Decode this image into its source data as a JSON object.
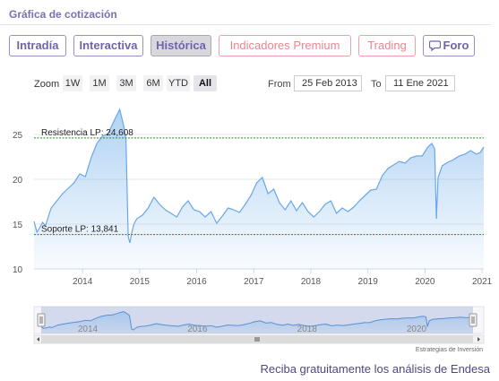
{
  "header": {
    "title": "Gráfica de cotización"
  },
  "tabs": [
    {
      "label": "Intradía"
    },
    {
      "label": "Interactiva"
    },
    {
      "label": "Histórica"
    },
    {
      "label": "Indicadores Premium"
    },
    {
      "label": "Trading"
    },
    {
      "label": "Foro"
    }
  ],
  "zoom": {
    "label": "Zoom",
    "buttons": [
      "1W",
      "1M",
      "3M",
      "6M",
      "YTD",
      "All"
    ],
    "selected": "All"
  },
  "range": {
    "from_label": "From",
    "from_value": "25 Feb 2013",
    "to_label": "To",
    "to_value": "11 Ene 2021"
  },
  "chart_data": {
    "type": "area",
    "y_ticks": [
      "10",
      "15",
      "20",
      "25"
    ],
    "ylim": [
      10,
      28.5
    ],
    "x_ticks": [
      "2014",
      "2015",
      "2016",
      "2017",
      "2018",
      "2019",
      "2020",
      "2021"
    ],
    "xlim": [
      2013.15,
      2021.03
    ],
    "series": [
      {
        "x": [
          2013.15,
          2013.2,
          2013.25,
          2013.3,
          2013.35,
          2013.45,
          2013.55,
          2013.65,
          2013.75,
          2013.85,
          2013.95,
          2014.05,
          2014.15,
          2014.25,
          2014.35,
          2014.45,
          2014.55,
          2014.65,
          2014.72,
          2014.76,
          2014.8,
          2014.83,
          2014.86,
          2014.9,
          2014.95,
          2015.05,
          2015.15,
          2015.25,
          2015.35,
          2015.45,
          2015.55,
          2015.65,
          2015.75,
          2015.85,
          2015.95,
          2016.05,
          2016.15,
          2016.25,
          2016.35,
          2016.45,
          2016.55,
          2016.65,
          2016.75,
          2016.85,
          2016.95,
          2017.05,
          2017.15,
          2017.25,
          2017.35,
          2017.45,
          2017.55,
          2017.65,
          2017.75,
          2017.85,
          2017.95,
          2018.05,
          2018.15,
          2018.25,
          2018.35,
          2018.45,
          2018.55,
          2018.65,
          2018.75,
          2018.85,
          2018.95,
          2019.05,
          2019.15,
          2019.25,
          2019.35,
          2019.45,
          2019.55,
          2019.65,
          2019.75,
          2019.85,
          2019.95,
          2020.05,
          2020.12,
          2020.17,
          2020.2,
          2020.23,
          2020.3,
          2020.4,
          2020.5,
          2020.6,
          2020.7,
          2020.8,
          2020.9,
          2020.97,
          2021.03
        ],
        "y": [
          15.3,
          14.1,
          14.6,
          15.2,
          14.8,
          16.8,
          17.6,
          18.4,
          19.0,
          19.6,
          20.6,
          20.3,
          22.4,
          24.0,
          24.8,
          25.1,
          26.5,
          27.8,
          26.0,
          24.5,
          13.6,
          12.9,
          14.0,
          15.0,
          15.6,
          16.0,
          16.8,
          18.0,
          17.2,
          16.6,
          16.2,
          15.8,
          16.9,
          17.6,
          16.6,
          16.4,
          15.8,
          16.4,
          15.1,
          15.9,
          16.8,
          16.6,
          16.3,
          17.2,
          18.2,
          19.6,
          20.2,
          18.4,
          18.9,
          17.4,
          16.6,
          17.6,
          16.5,
          17.4,
          16.4,
          15.8,
          16.4,
          17.2,
          17.6,
          16.2,
          16.8,
          16.4,
          16.9,
          17.6,
          18.2,
          18.8,
          18.9,
          20.4,
          21.2,
          21.6,
          22.0,
          21.8,
          22.4,
          22.6,
          22.6,
          23.6,
          24.0,
          23.4,
          15.6,
          20.2,
          21.5,
          21.9,
          22.2,
          22.6,
          22.8,
          23.2,
          22.8,
          23.0,
          23.6
        ]
      }
    ],
    "annotations": [
      {
        "label": "Resistencia LP: 24,608",
        "value": 24.608,
        "color": "#2e8b2e"
      },
      {
        "label": "Soporte LP: 13,841",
        "value": 13.841,
        "color": "#c03040"
      }
    ],
    "navigator_ticks": [
      "2014",
      "2016",
      "2018",
      "2020"
    ],
    "credit": "Estrategias de Inversión"
  },
  "footer": {
    "text": "Reciba gratuitamente los análisis de Endesa"
  },
  "colors": {
    "accent": "#7b6fb3",
    "series": "#7cb5ec",
    "premium": "#e8868e"
  }
}
